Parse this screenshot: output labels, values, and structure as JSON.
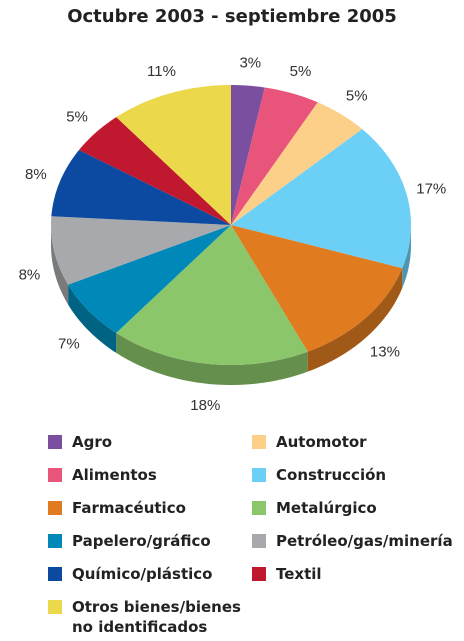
{
  "chart_data": {
    "type": "pie",
    "title": "Octubre 2003 - septiembre 2005",
    "categories": [
      "Agro",
      "Alimentos",
      "Automotor",
      "Construcción",
      "Farmacéutico",
      "Metalúrgico",
      "Papelero/gráfico",
      "Petróleo/gas/minería",
      "Químico/plástico",
      "Textil",
      "Otros bienes/bienes no identificados"
    ],
    "values": [
      3,
      5,
      5,
      17,
      13,
      18,
      7,
      8,
      8,
      5,
      11
    ],
    "value_labels": [
      "3%",
      "5%",
      "5%",
      "17%",
      "13%",
      "18%",
      "7%",
      "8%",
      "8%",
      "5%",
      "11%"
    ],
    "colors": [
      "#7b4fa0",
      "#e9557a",
      "#fdd08a",
      "#6ccff6",
      "#e07b20",
      "#8cc66a",
      "#0089b8",
      "#a7a9ac",
      "#0b4aa0",
      "#c0182f",
      "#ecd94b"
    ]
  }
}
